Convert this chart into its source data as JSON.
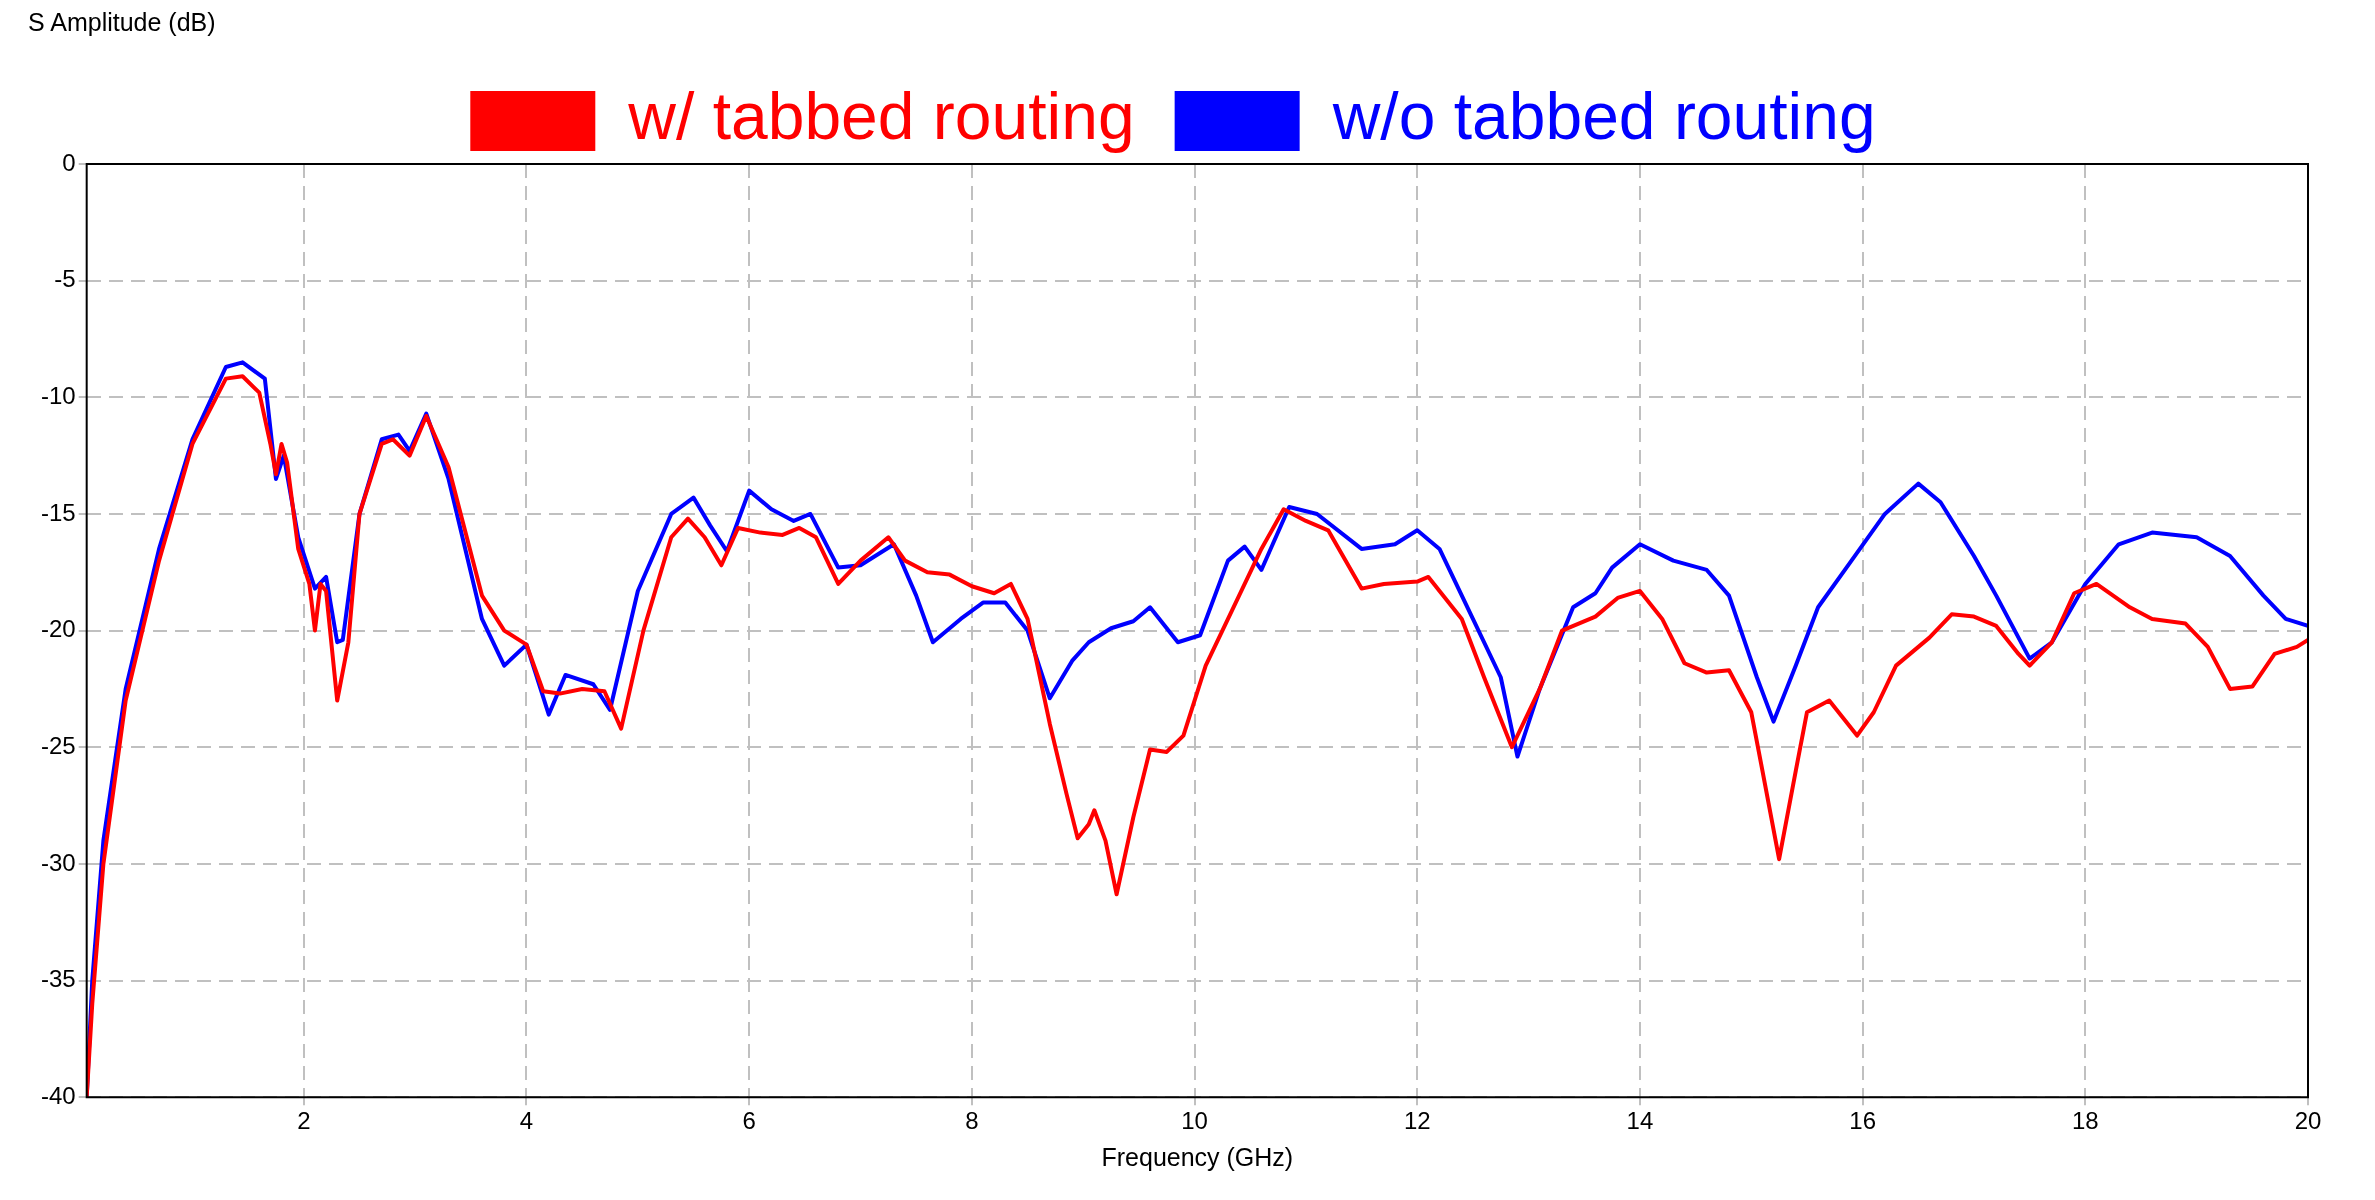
{
  "chart_data": {
    "type": "line",
    "ylabel": "S Amplitude (dB)",
    "xlabel": "Frequency (GHz)",
    "xlim": [
      0.05,
      20
    ],
    "xticks": [
      2,
      4,
      6,
      8,
      10,
      12,
      14,
      16,
      18,
      20
    ],
    "ylim": [
      -40,
      0
    ],
    "yticks": [
      -40,
      -35,
      -30,
      -25,
      -20,
      -15,
      -10,
      -5,
      0
    ],
    "grid": true,
    "legend": "top",
    "marker": "none",
    "line_style": "solid",
    "series": [
      {
        "name": "w/ tabbed routing",
        "color": "#ff0000",
        "x": [
          0.05,
          0.1,
          0.2,
          0.4,
          0.7,
          1.0,
          1.3,
          1.45,
          1.6,
          1.7,
          1.75,
          1.8,
          1.85,
          1.95,
          2.05,
          2.1,
          2.15,
          2.2,
          2.3,
          2.4,
          2.5,
          2.7,
          2.8,
          2.95,
          3.1,
          3.3,
          3.6,
          3.8,
          4.0,
          4.15,
          4.3,
          4.5,
          4.7,
          4.85,
          5.05,
          5.3,
          5.45,
          5.6,
          5.75,
          5.9,
          6.1,
          6.3,
          6.45,
          6.6,
          6.7,
          6.8,
          7.0,
          7.25,
          7.4,
          7.6,
          7.8,
          8.0,
          8.2,
          8.35,
          8.5,
          8.7,
          8.85,
          8.95,
          9.05,
          9.1,
          9.2,
          9.3,
          9.45,
          9.6,
          9.75,
          9.9,
          10.1,
          10.4,
          10.6,
          10.8,
          11.0,
          11.2,
          11.5,
          11.7,
          12.0,
          12.1,
          12.4,
          12.6,
          12.85,
          13.1,
          13.3,
          13.6,
          13.8,
          14.0,
          14.2,
          14.4,
          14.6,
          14.8,
          15.0,
          15.1,
          15.25,
          15.4,
          15.5,
          15.7,
          15.95,
          16.1,
          16.3,
          16.6,
          16.8,
          17.0,
          17.2,
          17.4,
          17.5,
          17.7,
          17.9,
          18.1,
          18.4,
          18.6,
          18.9,
          19.1,
          19.3,
          19.5,
          19.7,
          19.9,
          20.0
        ],
        "values": [
          -40,
          -36,
          -30,
          -23,
          -17,
          -12,
          -9.2,
          -9.1,
          -9.8,
          -12,
          -13.3,
          -12,
          -12.8,
          -16.5,
          -18,
          -20,
          -18,
          -18.3,
          -23,
          -20.5,
          -15,
          -12,
          -11.8,
          -12.5,
          -10.8,
          -13,
          -18.5,
          -20,
          -20.6,
          -22.6,
          -22.7,
          -22.5,
          -22.6,
          -24.2,
          -20,
          -16,
          -15.2,
          -16,
          -17.2,
          -15.6,
          -15.8,
          -15.9,
          -15.6,
          -16,
          -17,
          -18,
          -17,
          -16,
          -17,
          -17.5,
          -17.6,
          -18.1,
          -18.4,
          -18,
          -19.5,
          -24,
          -27,
          -28.9,
          -28.3,
          -27.7,
          -29,
          -31.3,
          -28,
          -25.1,
          -25.2,
          -24.5,
          -21.5,
          -18.5,
          -16.5,
          -14.8,
          -15.3,
          -15.7,
          -18.2,
          -18,
          -17.9,
          -17.7,
          -19.5,
          -22,
          -25,
          -22.5,
          -20,
          -19.4,
          -18.6,
          -18.3,
          -19.5,
          -21.4,
          -21.8,
          -21.7,
          -23.5,
          -26,
          -29.8,
          -26,
          -23.5,
          -23,
          -24.5,
          -23.5,
          -21.5,
          -20.3,
          -19.3,
          -19.4,
          -19.8,
          -21,
          -21.5,
          -20.5,
          -18.4,
          -18,
          -19,
          -19.5,
          -19.7,
          -20.7,
          -22.5,
          -22.4,
          -21,
          -20.7,
          -20.4
        ]
      },
      {
        "name": "w/o tabbed routing",
        "color": "#0000ff",
        "x": [
          0.05,
          0.1,
          0.2,
          0.4,
          0.7,
          1.0,
          1.3,
          1.45,
          1.65,
          1.75,
          1.82,
          1.95,
          2.1,
          2.2,
          2.3,
          2.35,
          2.5,
          2.7,
          2.85,
          2.95,
          3.1,
          3.3,
          3.6,
          3.8,
          4.0,
          4.2,
          4.35,
          4.6,
          4.75,
          5.0,
          5.3,
          5.5,
          5.65,
          5.8,
          6.0,
          6.2,
          6.4,
          6.55,
          6.8,
          7.0,
          7.3,
          7.5,
          7.65,
          7.9,
          8.1,
          8.3,
          8.5,
          8.7,
          8.9,
          9.05,
          9.25,
          9.45,
          9.6,
          9.85,
          10.05,
          10.3,
          10.45,
          10.6,
          10.85,
          11.1,
          11.5,
          11.8,
          12.0,
          12.2,
          12.5,
          12.75,
          12.9,
          13.1,
          13.4,
          13.6,
          13.75,
          14.0,
          14.3,
          14.6,
          14.8,
          15.05,
          15.2,
          15.4,
          15.6,
          15.9,
          16.2,
          16.5,
          16.7,
          17.0,
          17.2,
          17.5,
          17.7,
          18.0,
          18.3,
          18.6,
          19.0,
          19.3,
          19.6,
          19.8,
          20.0
        ],
        "values": [
          -40,
          -35,
          -29,
          -22.5,
          -16.5,
          -11.8,
          -8.7,
          -8.5,
          -9.2,
          -13.5,
          -12.5,
          -16,
          -18.2,
          -17.7,
          -20.5,
          -20.4,
          -15,
          -11.8,
          -11.6,
          -12.3,
          -10.7,
          -13.5,
          -19.5,
          -21.5,
          -20.6,
          -23.6,
          -21.9,
          -22.3,
          -23.4,
          -18.3,
          -15,
          -14.3,
          -15.5,
          -16.6,
          -14,
          -14.8,
          -15.3,
          -15,
          -17.3,
          -17.2,
          -16.3,
          -18.5,
          -20.5,
          -19.5,
          -18.8,
          -18.8,
          -20,
          -22.9,
          -21.3,
          -20.5,
          -19.9,
          -19.6,
          -19,
          -20.5,
          -20.2,
          -17,
          -16.4,
          -17.4,
          -14.7,
          -15,
          -16.5,
          -16.3,
          -15.7,
          -16.5,
          -19.5,
          -22,
          -25.4,
          -22.5,
          -19,
          -18.4,
          -17.3,
          -16.3,
          -17,
          -17.4,
          -18.5,
          -22,
          -23.9,
          -21.5,
          -19,
          -17,
          -15,
          -13.7,
          -14.5,
          -16.8,
          -18.5,
          -21.2,
          -20.5,
          -18,
          -16.3,
          -15.8,
          -16,
          -16.8,
          -18.5,
          -19.5,
          -19.8
        ]
      }
    ]
  }
}
